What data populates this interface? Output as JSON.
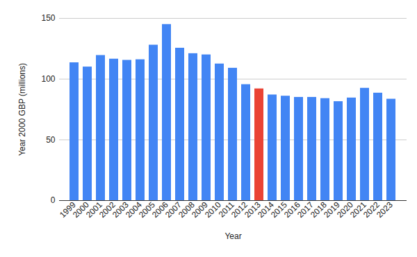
{
  "chart_data": {
    "type": "bar",
    "x_label": "Year",
    "y_label": "Year 2000 GBP (millions)",
    "categories": [
      "1999",
      "2000",
      "2001",
      "2002",
      "2003",
      "2004",
      "2005",
      "2006",
      "2007",
      "2008",
      "2009",
      "2010",
      "2011",
      "2012",
      "2013",
      "2014",
      "2015",
      "2016",
      "2017",
      "2018",
      "2019",
      "2020",
      "2021",
      "2022",
      "2023"
    ],
    "values": [
      113.5,
      110,
      119.5,
      116.5,
      115.5,
      116,
      128,
      145,
      125.5,
      121,
      120,
      112.5,
      109,
      95.5,
      92,
      87,
      86,
      85,
      85,
      84,
      81.5,
      84.5,
      92.5,
      88.5,
      83.5
    ],
    "colors": [
      "#4285f4",
      "#4285f4",
      "#4285f4",
      "#4285f4",
      "#4285f4",
      "#4285f4",
      "#4285f4",
      "#4285f4",
      "#4285f4",
      "#4285f4",
      "#4285f4",
      "#4285f4",
      "#4285f4",
      "#4285f4",
      "#ea4335",
      "#4285f4",
      "#4285f4",
      "#4285f4",
      "#4285f4",
      "#4285f4",
      "#4285f4",
      "#4285f4",
      "#4285f4",
      "#4285f4",
      "#4285f4"
    ],
    "ylim": [
      0,
      150
    ],
    "yticks": [
      0,
      50,
      100,
      150
    ],
    "grid": true
  }
}
